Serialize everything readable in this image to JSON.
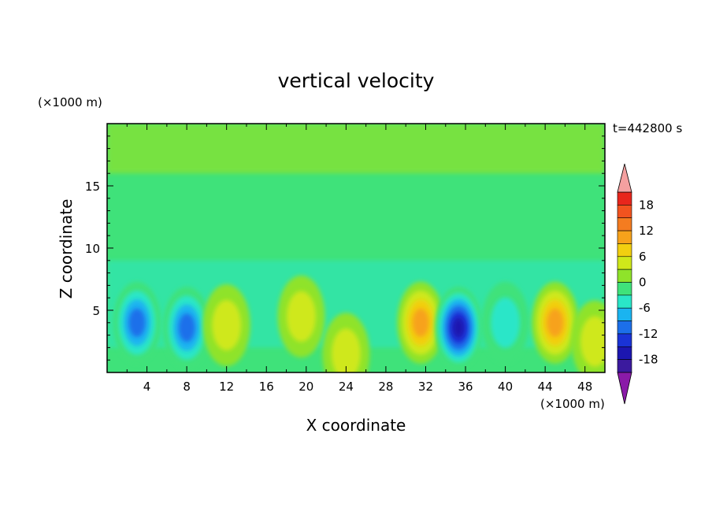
{
  "chart_data": {
    "type": "heatmap",
    "title": "vertical velocity",
    "xlabel": "X coordinate",
    "ylabel": "Z coordinate",
    "x_unit": "(×1000 m)",
    "y_unit": "(×1000 m)",
    "time_label": "t=442800 s",
    "xlim": [
      0,
      50
    ],
    "ylim": [
      0,
      20
    ],
    "x_ticks": [
      4,
      8,
      12,
      16,
      20,
      24,
      28,
      32,
      36,
      40,
      44,
      48
    ],
    "y_ticks": [
      5,
      10,
      15
    ],
    "colorbar": {
      "range": [
        -21,
        21
      ],
      "tick_values": [
        18,
        12,
        6,
        0,
        -6,
        -12,
        -18
      ],
      "tick_labels": [
        "18",
        "12",
        "6",
        "0",
        "-6",
        "-12",
        "-18"
      ],
      "levels": [
        {
          "from": 18,
          "to": 21,
          "color": "#e8261c"
        },
        {
          "from": 15,
          "to": 18,
          "color": "#f2531f"
        },
        {
          "from": 12,
          "to": 15,
          "color": "#f47c20"
        },
        {
          "from": 9,
          "to": 12,
          "color": "#f7a21b"
        },
        {
          "from": 6,
          "to": 9,
          "color": "#f2cf10"
        },
        {
          "from": 3,
          "to": 6,
          "color": "#cfe81a"
        },
        {
          "from": 0,
          "to": 3,
          "color": "#8fe32a"
        },
        {
          "from": -3,
          "to": 0,
          "color": "#3fe27a"
        },
        {
          "from": -6,
          "to": -3,
          "color": "#2ae6c8"
        },
        {
          "from": -9,
          "to": -6,
          "color": "#1ab4f0"
        },
        {
          "from": -12,
          "to": -9,
          "color": "#1c6fea"
        },
        {
          "from": -15,
          "to": -12,
          "color": "#1a33d6"
        },
        {
          "from": -18,
          "to": -15,
          "color": "#1c16b0"
        },
        {
          "from": -21,
          "to": -18,
          "color": "#3b1a9e"
        }
      ],
      "over_color": "#f4a0a0",
      "under_color": "#8a1aa8"
    },
    "features": [
      {
        "x": 3.0,
        "z": 4.0,
        "value": -11
      },
      {
        "x": 8.0,
        "z": 3.6,
        "value": -12
      },
      {
        "x": 12.0,
        "z": 3.8,
        "value": 5
      },
      {
        "x": 19.5,
        "z": 4.5,
        "value": 4
      },
      {
        "x": 24.0,
        "z": 1.5,
        "value": 5
      },
      {
        "x": 31.5,
        "z": 4.0,
        "value": 12
      },
      {
        "x": 35.3,
        "z": 3.6,
        "value": -16
      },
      {
        "x": 40.0,
        "z": 4.0,
        "value": -4
      },
      {
        "x": 45.0,
        "z": 4.0,
        "value": 12
      },
      {
        "x": 49.0,
        "z": 2.5,
        "value": 6
      }
    ]
  }
}
